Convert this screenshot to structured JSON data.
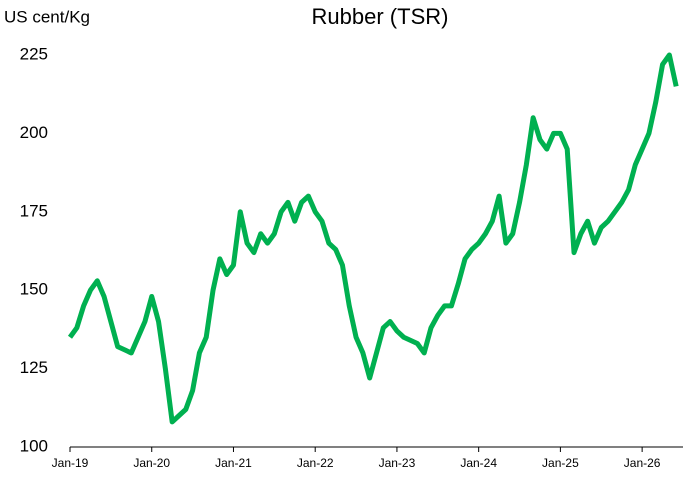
{
  "chart_data": {
    "type": "line",
    "title": "Rubber (TSR)",
    "y_label": "US cent/Kg",
    "x": [
      "Jan-19",
      "Feb-19",
      "Mar-19",
      "Apr-19",
      "May-19",
      "Jun-19",
      "Jul-19",
      "Aug-19",
      "Sep-19",
      "Oct-19",
      "Nov-19",
      "Dec-19",
      "Jan-20",
      "Feb-20",
      "Mar-20",
      "Apr-20",
      "May-20",
      "Jun-20",
      "Jul-20",
      "Aug-20",
      "Sep-20",
      "Oct-20",
      "Nov-20",
      "Dec-20",
      "Jan-21",
      "Feb-21",
      "Mar-21",
      "Apr-21",
      "May-21",
      "Jun-21",
      "Jul-21",
      "Aug-21",
      "Sep-21",
      "Oct-21",
      "Nov-21",
      "Dec-21",
      "Jan-22",
      "Feb-22",
      "Mar-22",
      "Apr-22",
      "May-22",
      "Jun-22",
      "Jul-22",
      "Aug-22",
      "Sep-22",
      "Oct-22",
      "Nov-22",
      "Dec-22",
      "Jan-23",
      "Feb-23",
      "Mar-23",
      "Apr-23",
      "May-23",
      "Jun-23",
      "Jul-23",
      "Aug-23",
      "Sep-23",
      "Oct-23",
      "Nov-23",
      "Dec-23",
      "Jan-24",
      "Feb-24",
      "Mar-24",
      "Apr-24",
      "May-24",
      "Jun-24",
      "Jul-24",
      "Aug-24",
      "Sep-24",
      "Oct-24",
      "Nov-24",
      "Dec-24",
      "Jan-25",
      "Feb-25",
      "Mar-25",
      "Apr-25",
      "May-25",
      "Jun-25",
      "Jul-25",
      "Aug-25",
      "Sep-25",
      "Oct-25",
      "Nov-25",
      "Dec-25",
      "Jan-26",
      "Feb-26",
      "Mar-26",
      "Apr-26",
      "May-26",
      "Jun-26"
    ],
    "series": [
      {
        "name": "Rubber (TSR)",
        "color": "#00b050",
        "values": [
          135,
          138,
          145,
          150,
          153,
          148,
          140,
          132,
          131,
          130,
          135,
          140,
          148,
          140,
          125,
          108,
          110,
          112,
          118,
          130,
          135,
          150,
          160,
          155,
          158,
          175,
          165,
          162,
          168,
          165,
          168,
          175,
          178,
          172,
          178,
          180,
          175,
          172,
          165,
          163,
          158,
          145,
          135,
          130,
          122,
          130,
          138,
          140,
          137,
          135,
          134,
          133,
          130,
          138,
          142,
          145,
          145,
          152,
          160,
          163,
          165,
          168,
          172,
          180,
          165,
          168,
          178,
          190,
          205,
          198,
          195,
          200,
          200,
          195,
          162,
          168,
          172,
          165,
          170,
          172,
          175,
          178,
          182,
          190,
          195,
          200,
          210,
          222,
          225,
          215
        ]
      }
    ],
    "xlim": [
      "Jan-19",
      "Jul-26"
    ],
    "xticks": [
      "Jan-19",
      "Jan-20",
      "Jan-21",
      "Jan-22",
      "Jan-23",
      "Jan-24",
      "Jan-25",
      "Jan-26"
    ],
    "ylim": [
      100,
      225
    ],
    "yticks": [
      100,
      125,
      150,
      175,
      200,
      225
    ],
    "grid": false
  }
}
